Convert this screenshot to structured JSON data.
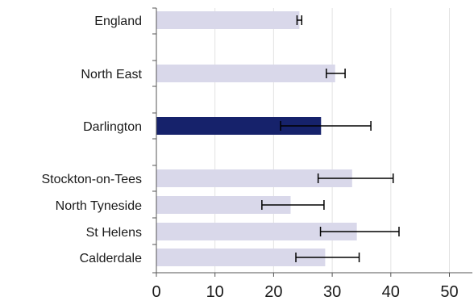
{
  "chart_data": {
    "type": "bar",
    "orientation": "horizontal",
    "title": "",
    "xlabel": "",
    "ylabel": "",
    "xlim": [
      0,
      55
    ],
    "xticks": [
      0,
      10,
      20,
      30,
      40,
      50
    ],
    "grid": "vertical",
    "categories": [
      "England",
      "North East",
      "Darlington",
      "Stockton-on-Tees",
      "North Tyneside",
      "St Helens",
      "Calderdale"
    ],
    "values": [
      24.4,
      30.5,
      28.1,
      33.4,
      22.9,
      34.2,
      28.8
    ],
    "ci_lower": [
      24.0,
      29.0,
      21.2,
      27.6,
      18.0,
      28.0,
      23.8
    ],
    "ci_upper": [
      24.8,
      32.2,
      36.6,
      40.4,
      28.6,
      41.4,
      34.6
    ],
    "highlight": "Darlington",
    "colors": {
      "bar": "#d9d8ea",
      "highlight": "#16226b",
      "error_bar": "#000000",
      "grid": "#e3e3e3",
      "axis": "#555555"
    }
  }
}
